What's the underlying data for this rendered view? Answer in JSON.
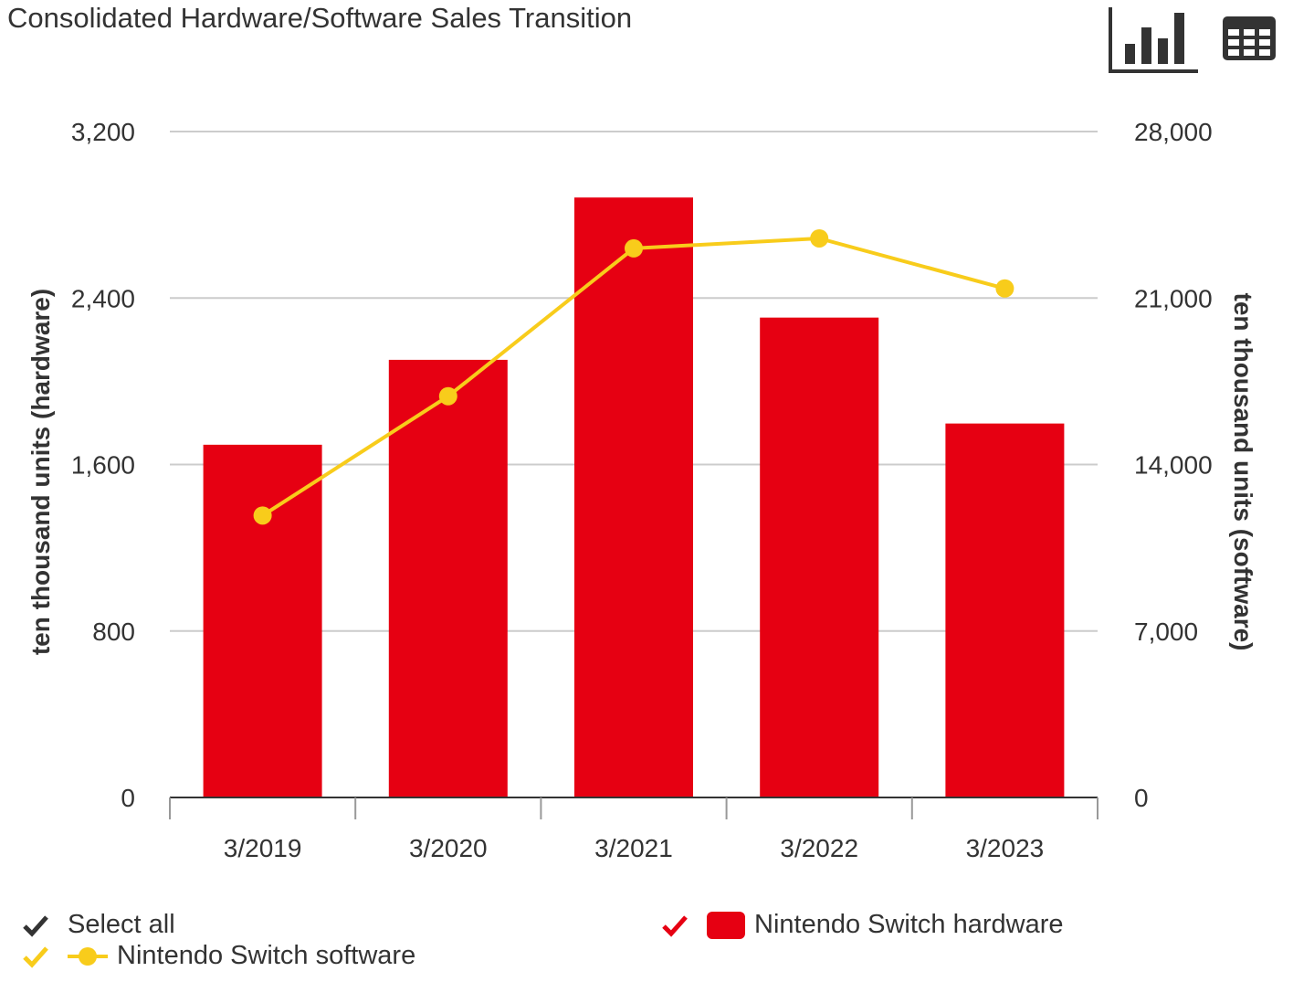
{
  "colors": {
    "hardware": "#e60012",
    "software": "#f8cc1b",
    "select_all": "#333333",
    "grid": "#cccccc",
    "axis": "#333333",
    "text": "#333333"
  },
  "toolbar": {
    "chart_icon": "bar-chart-icon",
    "table_icon": "table-icon"
  },
  "legend": {
    "select_all_label": "Select all",
    "hardware_label": "Nintendo Switch hardware",
    "software_label": "Nintendo Switch software",
    "check_icon": "checkmark-icon"
  },
  "chart_data": {
    "type": "bar",
    "title": "Consolidated Hardware/Software Sales Transition",
    "categories": [
      "3/2019",
      "3/2020",
      "3/2021",
      "3/2022",
      "3/2023"
    ],
    "xlabel": "",
    "ylabel": "ten thousand units (hardware)",
    "y2label": "ten thousand units (software)",
    "ylim": [
      0,
      3200
    ],
    "y2lim": [
      0,
      28000
    ],
    "yticks": [
      "0",
      "800",
      "1,600",
      "2,400",
      "3,200"
    ],
    "y2ticks": [
      "0",
      "7,000",
      "14,000",
      "21,000",
      "28,000"
    ],
    "grid": true,
    "legend_position": "bottom",
    "series": [
      {
        "name": "Nintendo Switch hardware",
        "type": "bar",
        "axis": "left",
        "values": [
          1695,
          2103,
          2883,
          2306,
          1797
        ]
      },
      {
        "name": "Nintendo Switch software",
        "type": "line",
        "axis": "right",
        "values": [
          11855,
          16872,
          23088,
          23507,
          21403
        ]
      }
    ]
  }
}
